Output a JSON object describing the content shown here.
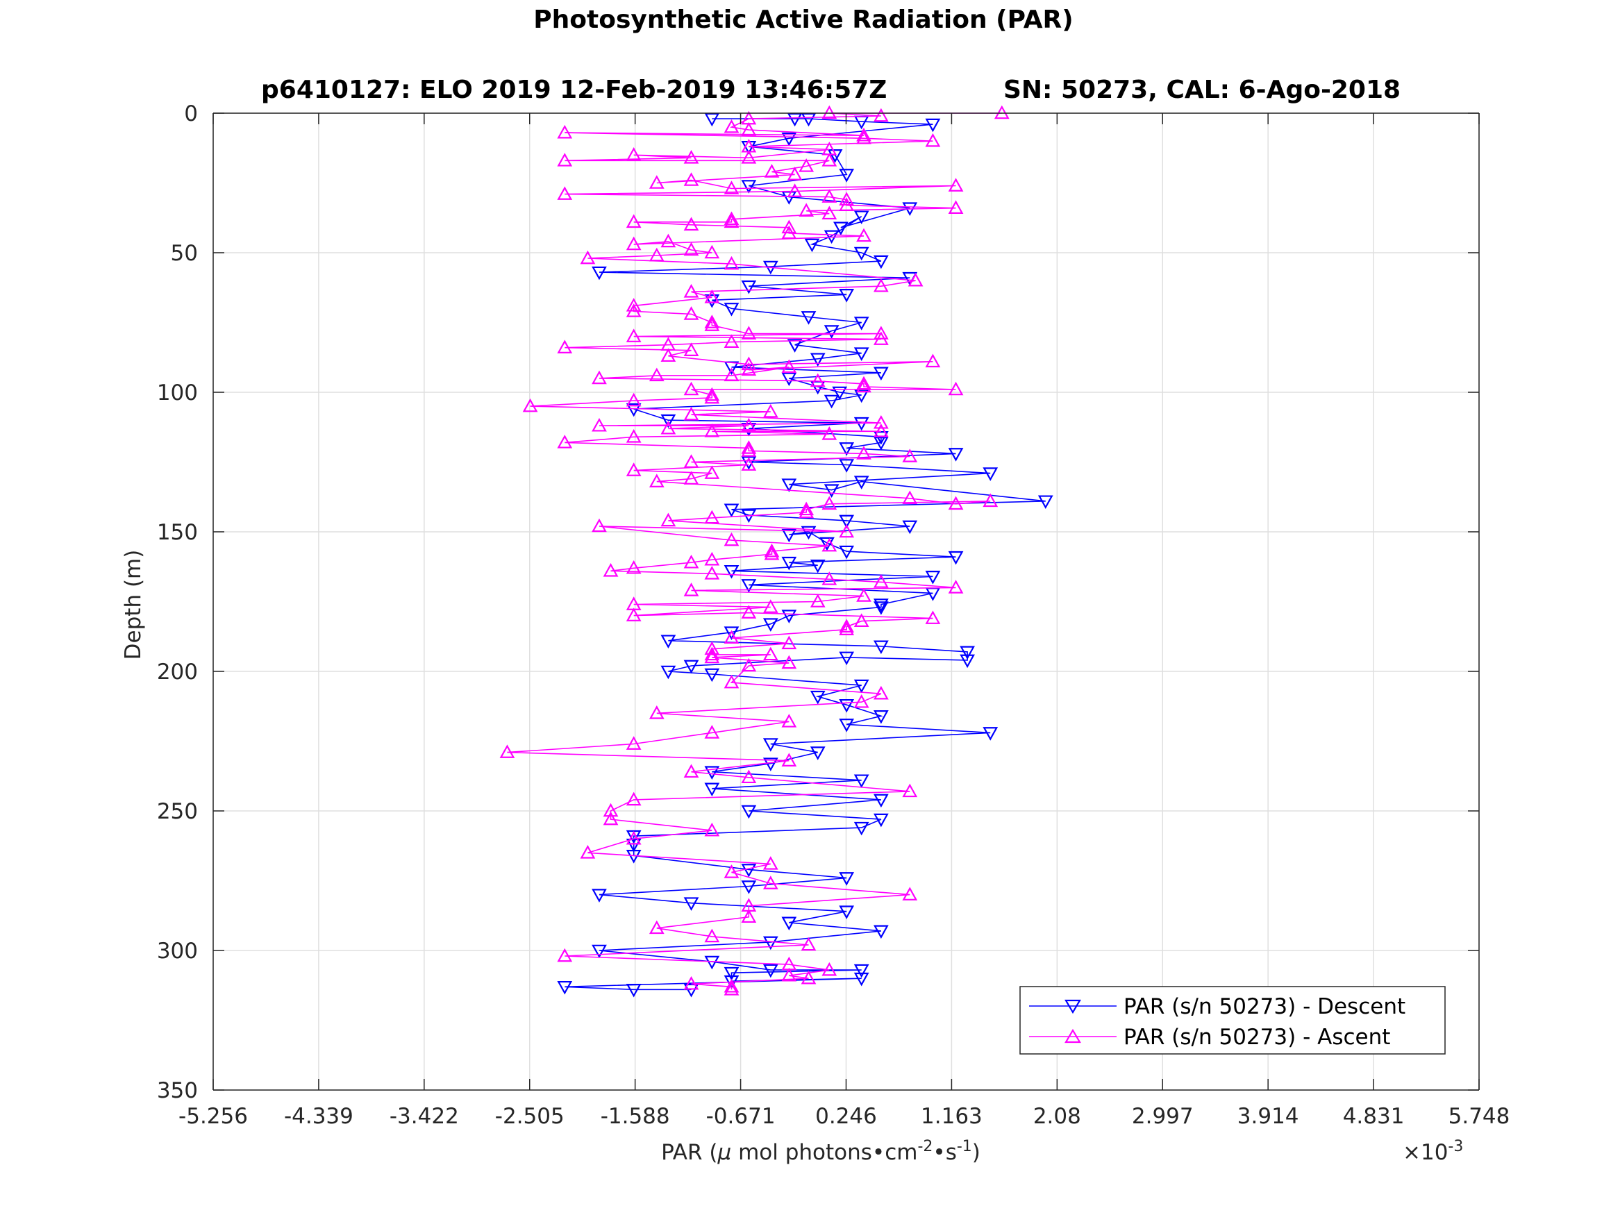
{
  "chart_data": {
    "type": "line",
    "title": "Photosynthetic Active Radiation (PAR)",
    "subtitle_left": "p6410127: ELO 2019 12-Feb-2019 13:46:57Z",
    "subtitle_right": "SN: 50273, CAL: 6-Ago-2018",
    "xlabel_main": "PAR (",
    "xlabel_mu": "μ",
    "xlabel_rest": " mol photons•cm",
    "xlabel_exp1": "-2",
    "xlabel_mid": "•s",
    "xlabel_exp2": "-1",
    "xlabel_close": ")",
    "ylabel": "Depth (m)",
    "x_multiplier_base": "×10",
    "x_multiplier_exp": "-3",
    "x_unit_scale": 0.001,
    "xlim": [
      -5.256,
      5.748
    ],
    "ylim": [
      0,
      350
    ],
    "y_reversed": true,
    "x_ticks": [
      "-5.256",
      "-4.339",
      "-3.422",
      "-2.505",
      "-1.588",
      "-0.671",
      "0.246",
      "1.163",
      "2.08",
      "2.997",
      "3.914",
      "4.831",
      "5.748"
    ],
    "y_ticks": [
      "0",
      "50",
      "100",
      "150",
      "200",
      "250",
      "300",
      "350"
    ],
    "grid": true,
    "legend_position": "bottom-right",
    "series": [
      {
        "name": "PAR (s/n 50273) - Descent",
        "color": "#0000ff",
        "marker": "triangle-down",
        "points": [
          [
            -0.92,
            2
          ],
          [
            -0.2,
            2
          ],
          [
            -0.08,
            2
          ],
          [
            0.38,
            3
          ],
          [
            1.0,
            4
          ],
          [
            -0.25,
            9
          ],
          [
            -0.6,
            12
          ],
          [
            0.15,
            15
          ],
          [
            0.25,
            22
          ],
          [
            -0.6,
            26
          ],
          [
            -0.25,
            30
          ],
          [
            0.8,
            34
          ],
          [
            0.2,
            41
          ],
          [
            0.38,
            37
          ],
          [
            0.12,
            44
          ],
          [
            -0.05,
            47
          ],
          [
            0.38,
            50
          ],
          [
            0.55,
            53
          ],
          [
            -0.41,
            55
          ],
          [
            -1.9,
            57
          ],
          [
            0.8,
            59
          ],
          [
            -0.6,
            62
          ],
          [
            0.25,
            65
          ],
          [
            -0.92,
            67
          ],
          [
            -0.75,
            70
          ],
          [
            -0.08,
            73
          ],
          [
            0.38,
            75
          ],
          [
            0.12,
            78
          ],
          [
            -0.2,
            83
          ],
          [
            0.38,
            86
          ],
          [
            0.0,
            88
          ],
          [
            -0.75,
            91
          ],
          [
            0.55,
            93
          ],
          [
            -0.25,
            95
          ],
          [
            0.0,
            98
          ],
          [
            0.19,
            100
          ],
          [
            0.38,
            101
          ],
          [
            0.12,
            103
          ],
          [
            -1.6,
            106
          ],
          [
            -1.3,
            110
          ],
          [
            0.38,
            111
          ],
          [
            -0.6,
            113
          ],
          [
            0.55,
            116
          ],
          [
            0.55,
            118
          ],
          [
            0.25,
            120
          ],
          [
            1.2,
            122
          ],
          [
            -0.6,
            125
          ],
          [
            0.25,
            126
          ],
          [
            1.5,
            129
          ],
          [
            -0.25,
            133
          ],
          [
            0.12,
            135
          ],
          [
            0.38,
            132
          ],
          [
            1.98,
            139
          ],
          [
            -0.75,
            142
          ],
          [
            -0.6,
            144
          ],
          [
            0.25,
            146
          ],
          [
            0.8,
            148
          ],
          [
            -0.25,
            151
          ],
          [
            -0.08,
            150
          ],
          [
            0.08,
            154
          ],
          [
            0.25,
            157
          ],
          [
            1.2,
            159
          ],
          [
            -0.25,
            161
          ],
          [
            0.0,
            162
          ],
          [
            -0.75,
            164
          ],
          [
            1.0,
            166
          ],
          [
            -0.6,
            169
          ],
          [
            1.0,
            172
          ],
          [
            0.55,
            176
          ],
          [
            0.55,
            177
          ],
          [
            -0.25,
            180
          ],
          [
            -0.41,
            183
          ],
          [
            -0.75,
            186
          ],
          [
            -1.3,
            189
          ],
          [
            0.55,
            191
          ],
          [
            1.3,
            193
          ],
          [
            1.3,
            196
          ],
          [
            0.25,
            195
          ],
          [
            -1.1,
            198
          ],
          [
            -1.3,
            200
          ],
          [
            -0.92,
            201
          ],
          [
            0.38,
            205
          ],
          [
            0.0,
            209
          ],
          [
            0.25,
            212
          ],
          [
            0.55,
            216
          ],
          [
            0.25,
            219
          ],
          [
            1.5,
            222
          ],
          [
            -0.41,
            226
          ],
          [
            0.0,
            229
          ],
          [
            -0.41,
            233
          ],
          [
            -0.92,
            236
          ],
          [
            0.38,
            239
          ],
          [
            -0.92,
            242
          ],
          [
            0.55,
            246
          ],
          [
            -0.6,
            250
          ],
          [
            0.55,
            253
          ],
          [
            0.38,
            256
          ],
          [
            -1.6,
            259
          ],
          [
            -1.6,
            262
          ],
          [
            -1.6,
            266
          ],
          [
            -0.6,
            271
          ],
          [
            0.25,
            274
          ],
          [
            -0.6,
            277
          ],
          [
            -1.9,
            280
          ],
          [
            -1.1,
            283
          ],
          [
            0.25,
            286
          ],
          [
            -0.25,
            290
          ],
          [
            0.55,
            293
          ],
          [
            -0.41,
            297
          ],
          [
            -1.9,
            300
          ],
          [
            -0.92,
            304
          ],
          [
            -0.41,
            307
          ],
          [
            0.38,
            307
          ],
          [
            -0.75,
            308
          ],
          [
            -0.75,
            311
          ],
          [
            0.38,
            310
          ],
          [
            -2.2,
            313
          ],
          [
            -1.6,
            314
          ],
          [
            -1.1,
            314
          ]
        ]
      },
      {
        "name": "PAR (s/n 50273) - Ascent",
        "color": "#ff00ff",
        "marker": "triangle-up",
        "points": [
          [
            1.6,
            0
          ],
          [
            0.1,
            0
          ],
          [
            0.55,
            1
          ],
          [
            -0.6,
            2
          ],
          [
            -0.75,
            5
          ],
          [
            -0.6,
            6
          ],
          [
            0.4,
            8
          ],
          [
            -2.2,
            7
          ],
          [
            0.4,
            9
          ],
          [
            1.0,
            10
          ],
          [
            -0.6,
            12
          ],
          [
            0.1,
            13
          ],
          [
            -0.6,
            16
          ],
          [
            -1.6,
            15
          ],
          [
            -1.1,
            16
          ],
          [
            -2.2,
            17
          ],
          [
            0.1,
            17
          ],
          [
            -0.1,
            19
          ],
          [
            -0.4,
            21
          ],
          [
            -0.2,
            22
          ],
          [
            -1.4,
            25
          ],
          [
            -1.1,
            24
          ],
          [
            -0.75,
            27
          ],
          [
            1.2,
            26
          ],
          [
            -0.2,
            28
          ],
          [
            -2.2,
            29
          ],
          [
            0.1,
            30
          ],
          [
            0.25,
            31
          ],
          [
            0.25,
            33
          ],
          [
            1.2,
            34
          ],
          [
            -0.1,
            35
          ],
          [
            0.1,
            36
          ],
          [
            -0.75,
            38
          ],
          [
            -0.75,
            39
          ],
          [
            -1.6,
            39
          ],
          [
            -1.1,
            40
          ],
          [
            -0.25,
            41
          ],
          [
            -0.25,
            43
          ],
          [
            0.4,
            44
          ],
          [
            -1.6,
            47
          ],
          [
            -1.3,
            46
          ],
          [
            -1.1,
            49
          ],
          [
            -0.92,
            50
          ],
          [
            -1.4,
            51
          ],
          [
            -2.0,
            52
          ],
          [
            -0.75,
            54
          ],
          [
            0.85,
            60
          ],
          [
            0.55,
            62
          ],
          [
            -1.1,
            64
          ],
          [
            -0.92,
            66
          ],
          [
            -1.6,
            69
          ],
          [
            -1.6,
            71
          ],
          [
            -1.1,
            72
          ],
          [
            -0.92,
            75
          ],
          [
            -0.92,
            76
          ],
          [
            -0.6,
            79
          ],
          [
            0.55,
            79
          ],
          [
            -1.6,
            80
          ],
          [
            0.55,
            81
          ],
          [
            -0.75,
            82
          ],
          [
            -1.3,
            83
          ],
          [
            -2.2,
            84
          ],
          [
            -1.1,
            85
          ],
          [
            -1.3,
            87
          ],
          [
            -0.6,
            90
          ],
          [
            1.0,
            89
          ],
          [
            -0.6,
            92
          ],
          [
            -0.25,
            91
          ],
          [
            -0.75,
            94
          ],
          [
            -1.4,
            94
          ],
          [
            -1.9,
            95
          ],
          [
            0.0,
            96
          ],
          [
            0.4,
            97
          ],
          [
            0.4,
            98
          ],
          [
            1.2,
            99
          ],
          [
            -1.1,
            99
          ],
          [
            -0.92,
            101
          ],
          [
            -0.92,
            102
          ],
          [
            -1.6,
            103
          ],
          [
            -2.5,
            105
          ],
          [
            -0.41,
            107
          ],
          [
            -1.1,
            108
          ],
          [
            0.55,
            111
          ],
          [
            -1.9,
            112
          ],
          [
            -0.6,
            112
          ],
          [
            -1.3,
            113
          ],
          [
            0.55,
            114
          ],
          [
            -0.92,
            114
          ],
          [
            0.1,
            115
          ],
          [
            -1.6,
            116
          ],
          [
            -2.2,
            118
          ],
          [
            -0.6,
            120
          ],
          [
            -0.6,
            121
          ],
          [
            0.4,
            122
          ],
          [
            0.8,
            123
          ],
          [
            -1.1,
            125
          ],
          [
            -0.6,
            126
          ],
          [
            -1.6,
            128
          ],
          [
            -0.92,
            129
          ],
          [
            -1.1,
            131
          ],
          [
            -1.4,
            132
          ],
          [
            0.8,
            138
          ],
          [
            1.2,
            140
          ],
          [
            1.5,
            139
          ],
          [
            0.1,
            140
          ],
          [
            -0.1,
            142
          ],
          [
            -0.1,
            143
          ],
          [
            -0.92,
            145
          ],
          [
            -1.3,
            146
          ],
          [
            0.25,
            150
          ],
          [
            -1.9,
            148
          ],
          [
            -0.75,
            153
          ],
          [
            0.1,
            155
          ],
          [
            -0.4,
            157
          ],
          [
            -0.4,
            158
          ],
          [
            -0.92,
            160
          ],
          [
            -1.1,
            161
          ],
          [
            -1.6,
            163
          ],
          [
            -1.8,
            164
          ],
          [
            -0.92,
            165
          ],
          [
            0.1,
            167
          ],
          [
            0.55,
            168
          ],
          [
            1.2,
            170
          ],
          [
            -1.1,
            171
          ],
          [
            0.4,
            173
          ],
          [
            0.0,
            175
          ],
          [
            -1.6,
            176
          ],
          [
            -0.41,
            177
          ],
          [
            -1.6,
            180
          ],
          [
            -0.6,
            179
          ],
          [
            1.0,
            181
          ],
          [
            0.38,
            182
          ],
          [
            0.25,
            184
          ],
          [
            0.25,
            185
          ],
          [
            -0.75,
            188
          ],
          [
            -0.25,
            190
          ],
          [
            -0.92,
            192
          ],
          [
            -0.92,
            194
          ],
          [
            -0.41,
            194
          ],
          [
            -0.92,
            195
          ],
          [
            -0.25,
            197
          ],
          [
            -0.6,
            198
          ],
          [
            -0.75,
            204
          ],
          [
            0.55,
            208
          ],
          [
            0.38,
            211
          ],
          [
            -1.4,
            215
          ],
          [
            -0.25,
            218
          ],
          [
            -0.92,
            222
          ],
          [
            -1.6,
            226
          ],
          [
            -2.7,
            229
          ],
          [
            -0.25,
            232
          ],
          [
            -1.1,
            236
          ],
          [
            -0.6,
            238
          ],
          [
            0.8,
            243
          ],
          [
            -1.6,
            246
          ],
          [
            -1.8,
            250
          ],
          [
            -1.8,
            253
          ],
          [
            -0.92,
            257
          ],
          [
            -1.6,
            260
          ],
          [
            -2.0,
            265
          ],
          [
            -0.41,
            269
          ],
          [
            -0.75,
            272
          ],
          [
            -0.41,
            276
          ],
          [
            0.8,
            280
          ],
          [
            -0.6,
            284
          ],
          [
            -0.6,
            288
          ],
          [
            -1.4,
            292
          ],
          [
            -0.92,
            295
          ],
          [
            -0.08,
            298
          ],
          [
            -2.2,
            302
          ],
          [
            -0.25,
            305
          ],
          [
            0.1,
            307
          ],
          [
            -0.25,
            309
          ],
          [
            -0.08,
            310
          ],
          [
            -1.1,
            312
          ],
          [
            -0.75,
            313
          ],
          [
            -0.75,
            314
          ]
        ]
      }
    ]
  }
}
